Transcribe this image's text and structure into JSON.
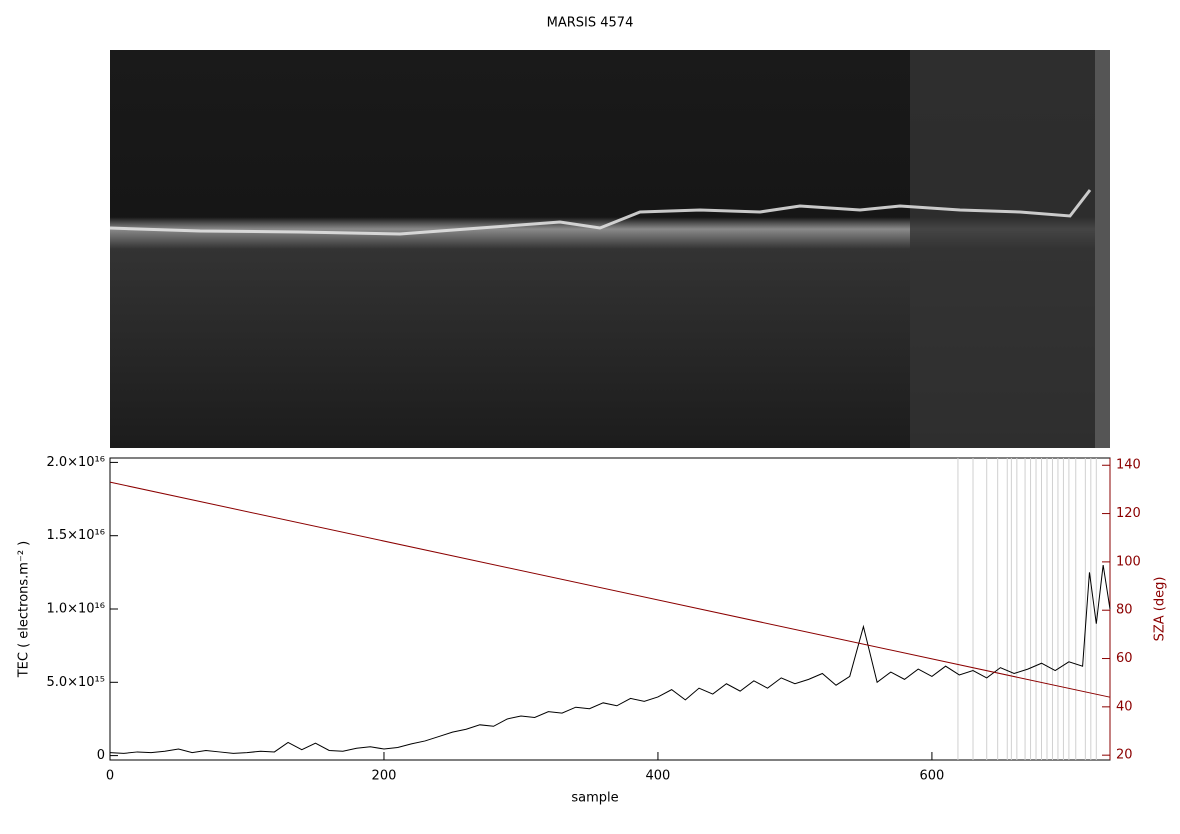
{
  "chart_data": {
    "type": "line",
    "title": "MARSIS 4574",
    "xlabel": "sample",
    "ylabel": "TEC ( electrons.m⁻² )",
    "y2label": "SZA (deg)",
    "xlim": [
      0,
      730
    ],
    "xticks": [
      0,
      200,
      400,
      600
    ],
    "ylim": [
      -300000000000000.0,
      2.03e+16
    ],
    "yticks": [
      0,
      {
        "value": 5000000000000000.0,
        "label": "5.0×10¹⁵"
      },
      {
        "value": 1e+16,
        "label": "1.0×10¹⁶"
      },
      {
        "value": 1.5e+16,
        "label": "1.5×10¹⁶"
      },
      {
        "value": 2e+16,
        "label": "2.0×10¹⁶"
      }
    ],
    "y2lim": [
      18,
      143
    ],
    "y2ticks": [
      20,
      40,
      60,
      80,
      100,
      120,
      140
    ],
    "y2color": "#8b0000",
    "marker_x": [
      619,
      630,
      640,
      648,
      655,
      658,
      662,
      668,
      672,
      676,
      680,
      684,
      688,
      692,
      696,
      700,
      705,
      712,
      716,
      720
    ],
    "marker_color": "#d0d0d0",
    "series": [
      {
        "color": "#000000",
        "x": [
          0,
          10,
          20,
          30,
          40,
          50,
          60,
          70,
          80,
          90,
          100,
          110,
          120,
          130,
          140,
          150,
          160,
          170,
          180,
          190,
          200,
          210,
          220,
          230,
          240,
          250,
          260,
          270,
          280,
          290,
          300,
          310,
          320,
          330,
          340,
          350,
          360,
          370,
          380,
          390,
          400,
          410,
          420,
          430,
          440,
          450,
          460,
          470,
          480,
          490,
          500,
          510,
          520,
          530,
          540,
          550,
          560,
          570,
          580,
          590,
          600,
          610,
          620,
          630,
          640,
          650,
          660,
          670,
          680,
          690,
          700,
          710,
          715,
          720,
          725,
          730
        ],
        "values": [
          200000000000000.0,
          150000000000000.0,
          250000000000000.0,
          200000000000000.0,
          300000000000000.0,
          450000000000000.0,
          200000000000000.0,
          350000000000000.0,
          250000000000000.0,
          150000000000000.0,
          200000000000000.0,
          300000000000000.0,
          250000000000000.0,
          900000000000000.0,
          400000000000000.0,
          850000000000000.0,
          350000000000000.0,
          300000000000000.0,
          500000000000000.0,
          600000000000000.0,
          450000000000000.0,
          550000000000000.0,
          800000000000000.0,
          1000000000000000.0,
          1300000000000000.0,
          1600000000000000.0,
          1800000000000000.0,
          2100000000000000.0,
          2000000000000000.0,
          2500000000000000.0,
          2700000000000000.0,
          2600000000000000.0,
          3000000000000000.0,
          2900000000000000.0,
          3300000000000000.0,
          3200000000000000.0,
          3600000000000000.0,
          3400000000000000.0,
          3900000000000000.0,
          3700000000000000.0,
          4000000000000000.0,
          4500000000000000.0,
          3800000000000000.0,
          4600000000000000.0,
          4200000000000000.0,
          4900000000000000.0,
          4400000000000000.0,
          5100000000000000.0,
          4600000000000000.0,
          5300000000000000.0,
          4900000000000000.0,
          5200000000000000.0,
          5600000000000000.0,
          4800000000000000.0,
          5400000000000000.0,
          8800000000000000.0,
          5000000000000000.0,
          5700000000000000.0,
          5200000000000000.0,
          5900000000000000.0,
          5400000000000000.0,
          6100000000000000.0,
          5500000000000000.0,
          5800000000000000.0,
          5300000000000000.0,
          6000000000000000.0,
          5600000000000000.0,
          5900000000000000.0,
          6300000000000000.0,
          5800000000000000.0,
          6400000000000000.0,
          6100000000000000.0,
          1.25e+16,
          9000000000000000.0,
          1.3e+16,
          1e+16
        ]
      },
      {
        "color": "#8b0000",
        "axis": "y2",
        "x": [
          0,
          730
        ],
        "values": [
          133,
          44
        ]
      }
    ]
  }
}
